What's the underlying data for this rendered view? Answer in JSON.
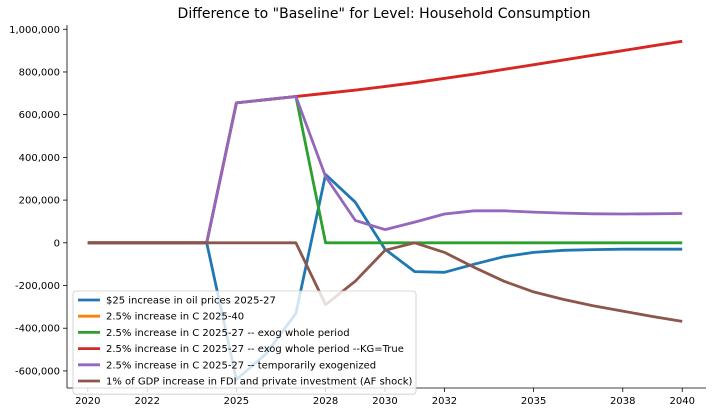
{
  "chart_data": {
    "type": "line",
    "title": "Difference to \"Baseline\" for Level: Household Consumption",
    "xlabel": "",
    "ylabel": "",
    "xlim": [
      2019.3,
      2040.8
    ],
    "ylim": [
      -680000,
      1020000
    ],
    "x_ticks": [
      2020,
      2022,
      2025,
      2028,
      2030,
      2032,
      2035,
      2038,
      2040
    ],
    "x_tick_labels": [
      "2020",
      "2022",
      "2025",
      "2028",
      "2030",
      "2032",
      "2035",
      "2038",
      "2040"
    ],
    "y_ticks": [
      -600000,
      -400000,
      -200000,
      0,
      200000,
      400000,
      600000,
      800000,
      1000000
    ],
    "y_tick_labels": [
      "-600,000",
      "-400,000",
      "-200,000",
      "0",
      "200,000",
      "400,000",
      "600,000",
      "800,000",
      "1,000,000"
    ],
    "grid": false,
    "legend_position": "lower-left",
    "series": [
      {
        "name": "$25 increase in oil prices 2025-27",
        "color": "#1f77b4",
        "x": [
          2020,
          2021,
          2022,
          2023,
          2024,
          2025,
          2026,
          2027,
          2028,
          2029,
          2030,
          2031,
          2032,
          2033,
          2034,
          2035,
          2036,
          2037,
          2038,
          2039,
          2040
        ],
        "y": [
          0,
          0,
          0,
          0,
          0,
          -640000,
          -520000,
          -330000,
          320000,
          190000,
          -30000,
          -135000,
          -138000,
          -100000,
          -65000,
          -45000,
          -35000,
          -32000,
          -30000,
          -30000,
          -30000
        ]
      },
      {
        "name": "2.5% increase in C 2025-40",
        "color": "#ff7f0e",
        "x": [
          2020,
          2021,
          2022,
          2023,
          2024,
          2025,
          2026,
          2027,
          2028,
          2029,
          2030,
          2031,
          2032,
          2033,
          2034,
          2035,
          2036,
          2037,
          2038,
          2039,
          2040
        ],
        "y": [
          0,
          0,
          0,
          0,
          0,
          655000,
          670000,
          685000,
          700000,
          715000,
          732000,
          750000,
          770000,
          790000,
          812000,
          834000,
          856000,
          878000,
          900000,
          922000,
          944000
        ]
      },
      {
        "name": "2.5% increase in C 2025-27 -- exog whole period",
        "color": "#2ca02c",
        "x": [
          2020,
          2021,
          2022,
          2023,
          2024,
          2025,
          2026,
          2027,
          2028,
          2029,
          2030,
          2031,
          2032,
          2033,
          2034,
          2035,
          2036,
          2037,
          2038,
          2039,
          2040
        ],
        "y": [
          0,
          0,
          0,
          0,
          0,
          655000,
          670000,
          685000,
          0,
          0,
          0,
          0,
          0,
          0,
          0,
          0,
          0,
          0,
          0,
          0,
          0
        ]
      },
      {
        "name": "2.5% increase in C 2025-27 -- exog whole period --KG=True",
        "color": "#d62728",
        "x": [
          2020,
          2021,
          2022,
          2023,
          2024,
          2025,
          2026,
          2027,
          2028,
          2029,
          2030,
          2031,
          2032,
          2033,
          2034,
          2035,
          2036,
          2037,
          2038,
          2039,
          2040
        ],
        "y": [
          0,
          0,
          0,
          0,
          0,
          655000,
          670000,
          685000,
          700000,
          715000,
          732000,
          750000,
          770000,
          790000,
          812000,
          834000,
          856000,
          878000,
          900000,
          922000,
          944000
        ]
      },
      {
        "name": "2.5% increase in C 2025-27 -- temporarily exogenized",
        "color": "#9467bd",
        "x": [
          2020,
          2021,
          2022,
          2023,
          2024,
          2025,
          2026,
          2027,
          2028,
          2029,
          2030,
          2031,
          2032,
          2033,
          2034,
          2035,
          2036,
          2037,
          2038,
          2039,
          2040
        ],
        "y": [
          0,
          0,
          0,
          0,
          0,
          655000,
          670000,
          685000,
          310000,
          105000,
          62000,
          97000,
          135000,
          150000,
          150000,
          144000,
          139000,
          136000,
          135000,
          136000,
          137000
        ]
      },
      {
        "name": "1% of GDP increase in FDI and private investment (AF shock)",
        "color": "#8c564b",
        "x": [
          2020,
          2021,
          2022,
          2023,
          2024,
          2025,
          2026,
          2027,
          2028,
          2029,
          2030,
          2031,
          2032,
          2033,
          2034,
          2035,
          2036,
          2037,
          2038,
          2039,
          2040
        ],
        "y": [
          0,
          0,
          0,
          0,
          0,
          0,
          0,
          0,
          -290000,
          -180000,
          -35000,
          0,
          -45000,
          -115000,
          -180000,
          -230000,
          -265000,
          -295000,
          -320000,
          -345000,
          -368000
        ]
      }
    ]
  }
}
